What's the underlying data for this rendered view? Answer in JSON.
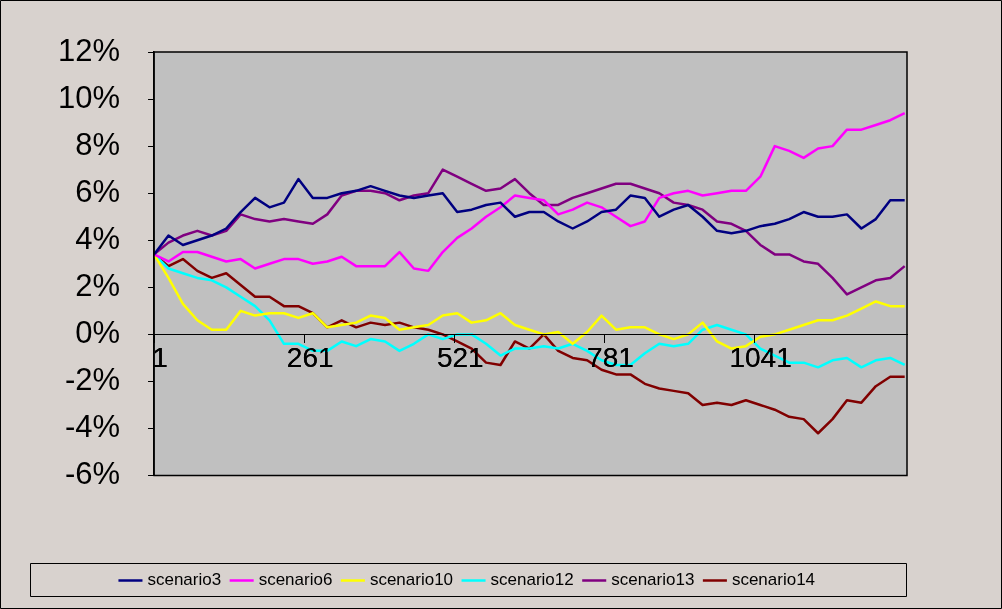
{
  "chart_data": {
    "type": "line",
    "x": [
      1,
      26,
      51,
      76,
      101,
      126,
      151,
      176,
      201,
      226,
      251,
      276,
      301,
      326,
      351,
      376,
      401,
      426,
      451,
      476,
      501,
      526,
      551,
      576,
      601,
      626,
      651,
      676,
      701,
      726,
      751,
      776,
      801,
      826,
      851,
      876,
      901,
      926,
      951,
      976,
      1001,
      1026,
      1051,
      1076,
      1101,
      1126,
      1151,
      1176,
      1201,
      1226,
      1251,
      1276,
      1301
    ],
    "series": [
      {
        "name": "scenario3",
        "color": "#000080",
        "values": [
          3.4,
          4.2,
          3.8,
          4.0,
          4.2,
          4.5,
          5.2,
          5.8,
          5.4,
          5.6,
          6.6,
          5.8,
          5.8,
          6.0,
          6.1,
          6.3,
          6.1,
          5.9,
          5.8,
          5.9,
          6.0,
          5.2,
          5.3,
          5.5,
          5.6,
          5.0,
          5.2,
          5.2,
          4.8,
          4.5,
          4.8,
          5.2,
          5.3,
          5.9,
          5.8,
          5.0,
          5.3,
          5.5,
          5.0,
          4.4,
          4.3,
          4.4,
          4.6,
          4.7,
          4.9,
          5.2,
          5.0,
          5.0,
          5.1,
          4.5,
          4.9,
          5.7,
          5.7
        ]
      },
      {
        "name": "scenario6",
        "color": "#ff00ff",
        "values": [
          3.4,
          3.1,
          3.5,
          3.5,
          3.3,
          3.1,
          3.2,
          2.8,
          3.0,
          3.2,
          3.2,
          3.0,
          3.1,
          3.3,
          2.9,
          2.9,
          2.9,
          3.5,
          2.8,
          2.7,
          3.5,
          4.1,
          4.5,
          5.0,
          5.4,
          5.9,
          5.8,
          5.7,
          5.1,
          5.3,
          5.6,
          5.4,
          5.0,
          4.6,
          4.8,
          5.8,
          6.0,
          6.1,
          5.9,
          6.0,
          6.1,
          6.1,
          6.7,
          8.0,
          7.8,
          7.5,
          7.9,
          8.0,
          8.7,
          8.7,
          8.9,
          9.1,
          9.4
        ]
      },
      {
        "name": "scenario10",
        "color": "#ffff00",
        "values": [
          3.4,
          2.4,
          1.3,
          0.6,
          0.2,
          0.2,
          1.0,
          0.8,
          0.9,
          0.9,
          0.7,
          0.9,
          0.3,
          0.4,
          0.5,
          0.8,
          0.7,
          0.2,
          0.3,
          0.4,
          0.8,
          0.9,
          0.5,
          0.6,
          0.9,
          0.4,
          0.2,
          0.0,
          0.1,
          -0.4,
          0.1,
          0.8,
          0.2,
          0.3,
          0.3,
          0.0,
          -0.2,
          0.0,
          0.5,
          -0.3,
          -0.6,
          -0.5,
          -0.1,
          0.0,
          0.2,
          0.4,
          0.6,
          0.6,
          0.8,
          1.1,
          1.4,
          1.2,
          1.2
        ]
      },
      {
        "name": "scenario12",
        "color": "#00ffff",
        "values": [
          3.4,
          2.8,
          2.6,
          2.4,
          2.3,
          2.0,
          1.6,
          1.2,
          0.6,
          -0.4,
          -0.4,
          -0.7,
          -0.7,
          -0.3,
          -0.5,
          -0.2,
          -0.3,
          -0.7,
          -0.4,
          0.0,
          -0.2,
          0.0,
          0.0,
          -0.4,
          -0.9,
          -0.6,
          -0.6,
          -0.5,
          -0.6,
          -0.4,
          -0.7,
          -1.1,
          -1.3,
          -1.3,
          -0.8,
          -0.4,
          -0.5,
          -0.4,
          0.2,
          0.4,
          0.2,
          0.0,
          -0.6,
          -0.9,
          -1.2,
          -1.2,
          -1.4,
          -1.1,
          -1.0,
          -1.4,
          -1.1,
          -1.0,
          -1.3
        ]
      },
      {
        "name": "scenario13",
        "color": "#800080",
        "values": [
          3.4,
          3.9,
          4.2,
          4.4,
          4.2,
          4.4,
          5.1,
          4.9,
          4.8,
          4.9,
          4.8,
          4.7,
          5.1,
          5.9,
          6.1,
          6.1,
          6.0,
          5.7,
          5.9,
          6.0,
          7.0,
          6.7,
          6.4,
          6.1,
          6.2,
          6.6,
          6.0,
          5.5,
          5.5,
          5.8,
          6.0,
          6.2,
          6.4,
          6.4,
          6.2,
          6.0,
          5.6,
          5.5,
          5.3,
          4.8,
          4.7,
          4.4,
          3.8,
          3.4,
          3.4,
          3.1,
          3.0,
          2.4,
          1.7,
          2.0,
          2.3,
          2.4,
          2.9
        ]
      },
      {
        "name": "scenario14",
        "color": "#800000",
        "values": [
          3.4,
          2.9,
          3.2,
          2.7,
          2.4,
          2.6,
          2.1,
          1.6,
          1.6,
          1.2,
          1.2,
          0.9,
          0.3,
          0.6,
          0.3,
          0.5,
          0.4,
          0.5,
          0.3,
          0.2,
          0.0,
          -0.3,
          -0.6,
          -1.2,
          -1.3,
          -0.3,
          -0.6,
          0.0,
          -0.7,
          -1.0,
          -1.1,
          -1.5,
          -1.7,
          -1.7,
          -2.1,
          -2.3,
          -2.4,
          -2.5,
          -3.0,
          -2.9,
          -3.0,
          -2.8,
          -3.0,
          -3.2,
          -3.5,
          -3.6,
          -4.2,
          -3.6,
          -2.8,
          -2.9,
          -2.2,
          -1.8,
          -1.8
        ]
      }
    ],
    "xlim": [
      1,
      1305
    ],
    "xticks": [
      1,
      261,
      521,
      781,
      1041
    ],
    "ylim": [
      -6,
      12
    ],
    "yticks": [
      {
        "value": -6,
        "label": "-6%"
      },
      {
        "value": -4,
        "label": "-4%"
      },
      {
        "value": -2,
        "label": "-2%"
      },
      {
        "value": 0,
        "label": "0%"
      },
      {
        "value": 2,
        "label": "2%"
      },
      {
        "value": 4,
        "label": "4%"
      },
      {
        "value": 6,
        "label": "6%"
      },
      {
        "value": 8,
        "label": "8%"
      },
      {
        "value": 10,
        "label": "10%"
      },
      {
        "value": 12,
        "label": "12%"
      }
    ],
    "grid": false,
    "legend": "bottom",
    "marker": "none",
    "line_style": "solid"
  }
}
